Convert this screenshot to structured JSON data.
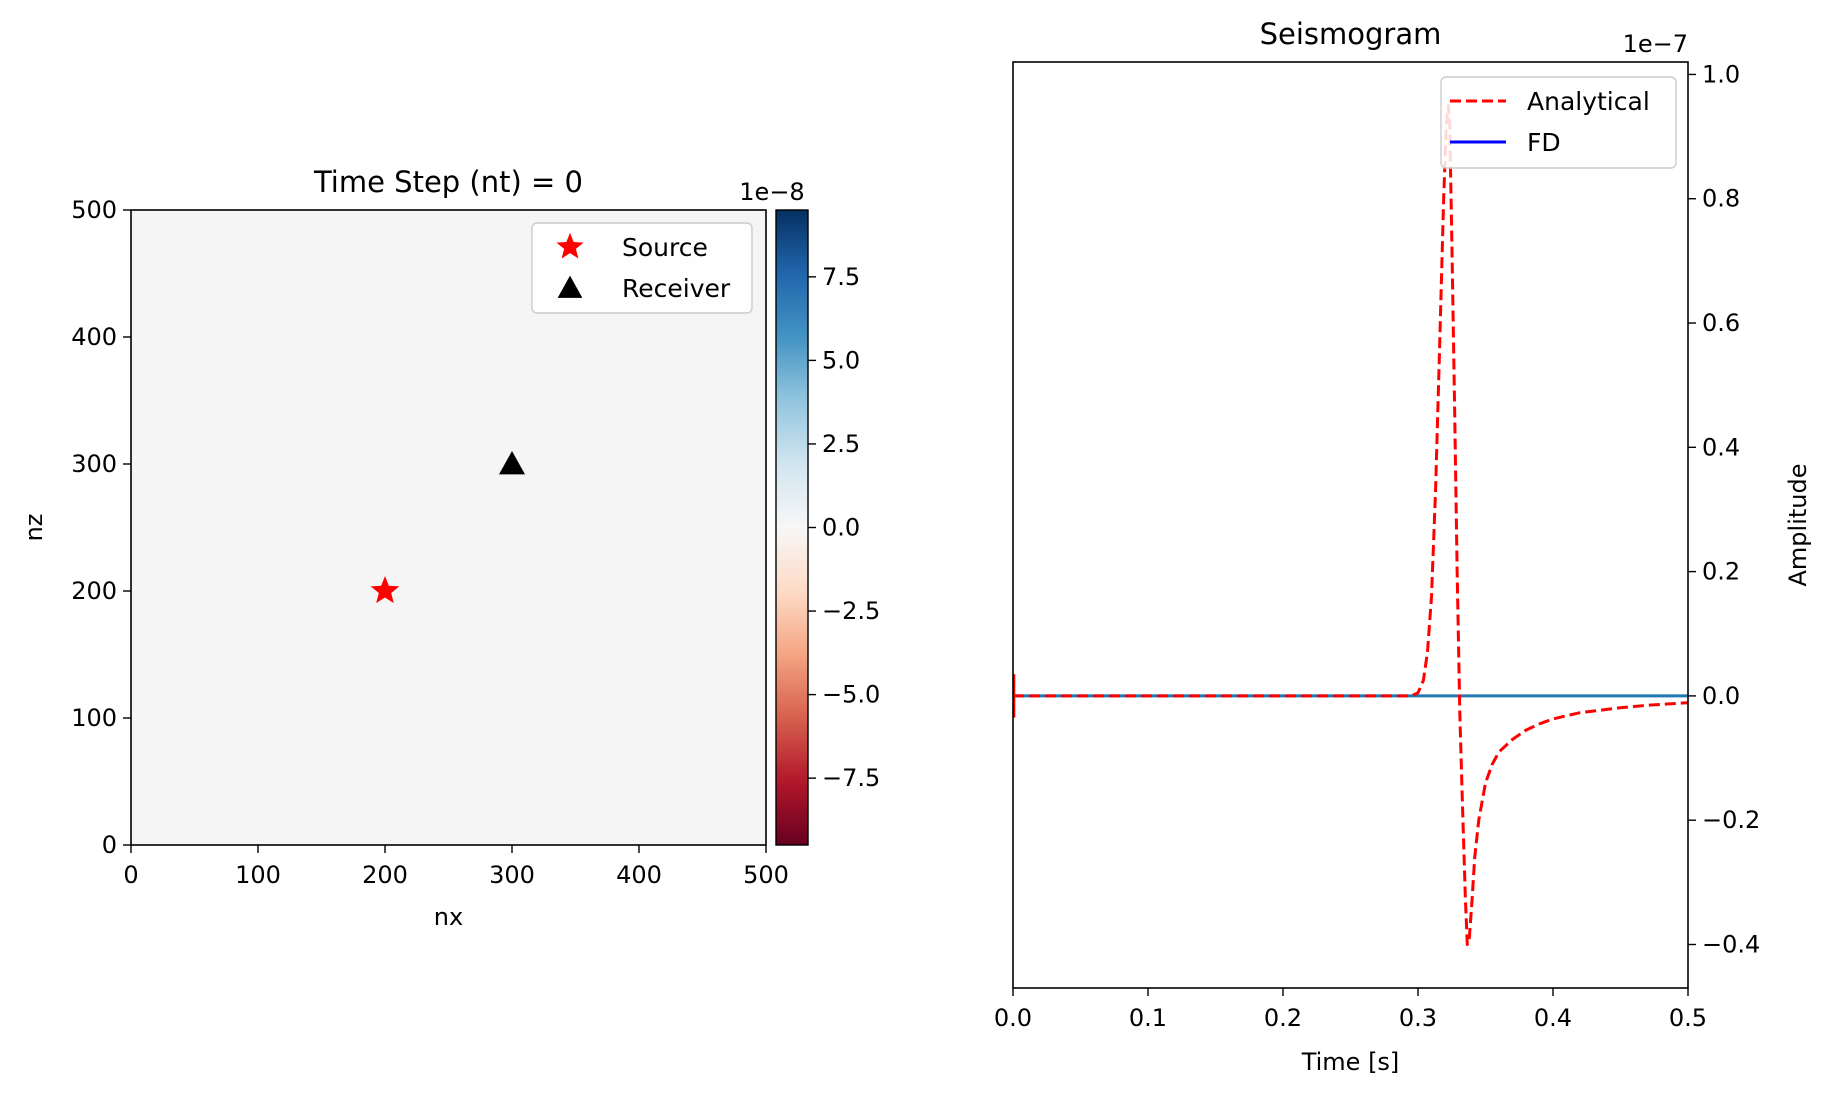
{
  "chart_data": [
    {
      "type": "heatmap",
      "title": "Time Step (nt) = 0",
      "xlabel": "nx",
      "ylabel": "nz",
      "xlim": [
        0,
        500
      ],
      "ylim": [
        0,
        500
      ],
      "xticks": [
        0,
        100,
        200,
        300,
        400,
        500
      ],
      "yticks": [
        0,
        100,
        200,
        300,
        400,
        500
      ],
      "field_value": 0,
      "field_color": "#f5f5f5",
      "colorbar": {
        "colormap": "RdBu",
        "multiplier": "1e−8",
        "range": [
          -9.5,
          9.5
        ],
        "ticks": [
          7.5,
          5.0,
          2.5,
          0.0,
          -2.5,
          -5.0,
          -7.5
        ],
        "tick_labels": [
          "7.5",
          "5.0",
          "2.5",
          "0.0",
          "−2.5",
          "−5.0",
          "−7.5"
        ]
      },
      "markers": [
        {
          "name": "Source",
          "x": 200,
          "z": 200,
          "shape": "star",
          "color": "#ff0000"
        },
        {
          "name": "Receiver",
          "x": 300,
          "z": 300,
          "shape": "triangle",
          "color": "#000000"
        }
      ],
      "legend": {
        "placement": "top-right",
        "entries": [
          "Source",
          "Receiver"
        ]
      }
    },
    {
      "type": "line",
      "title": "Seismogram",
      "xlabel": "Time [s]",
      "ylabel": "Amplitude",
      "y_axis_side": "right",
      "y_multiplier": "1e−7",
      "xlim": [
        0,
        0.5
      ],
      "ylim": [
        -0.47,
        1.02
      ],
      "xticks": [
        0.0,
        0.1,
        0.2,
        0.3,
        0.4,
        0.5
      ],
      "xtick_labels": [
        "0.0",
        "0.1",
        "0.2",
        "0.3",
        "0.4",
        "0.5"
      ],
      "yticks": [
        1.0,
        0.8,
        0.6,
        0.4,
        0.2,
        0.0,
        -0.2,
        -0.4
      ],
      "ytick_labels": [
        "1.0",
        "0.8",
        "0.6",
        "0.4",
        "0.2",
        "0.0",
        "−0.2",
        "−0.4"
      ],
      "legend": {
        "placement": "top-right"
      },
      "series": [
        {
          "name": "Analytical",
          "color": "#ff0000",
          "dash": "dashed",
          "x": [
            0,
            0.2,
            0.295,
            0.3,
            0.304,
            0.307,
            0.31,
            0.313,
            0.316,
            0.319,
            0.321,
            0.3225,
            0.3235,
            0.325,
            0.327,
            0.329,
            0.331,
            0.333,
            0.335,
            0.3365,
            0.338,
            0.34,
            0.342,
            0.345,
            0.35,
            0.355,
            0.36,
            0.37,
            0.38,
            0.39,
            0.4,
            0.42,
            0.45,
            0.47,
            0.5
          ],
          "y": [
            0,
            0,
            0,
            0.005,
            0.025,
            0.07,
            0.16,
            0.33,
            0.56,
            0.8,
            0.92,
            0.95,
            0.92,
            0.74,
            0.48,
            0.2,
            -0.03,
            -0.18,
            -0.32,
            -0.4,
            -0.39,
            -0.33,
            -0.26,
            -0.2,
            -0.14,
            -0.11,
            -0.09,
            -0.07,
            -0.055,
            -0.045,
            -0.037,
            -0.027,
            -0.019,
            -0.015,
            -0.011
          ]
        },
        {
          "name": "FD",
          "color": "#0000ff",
          "draw_color": "#1f77b4",
          "dash": "solid",
          "x": [
            0,
            0.5
          ],
          "y": [
            0,
            0
          ]
        }
      ],
      "annotation": "small spike at t = 0.0 (approx. ±0.03)"
    }
  ]
}
